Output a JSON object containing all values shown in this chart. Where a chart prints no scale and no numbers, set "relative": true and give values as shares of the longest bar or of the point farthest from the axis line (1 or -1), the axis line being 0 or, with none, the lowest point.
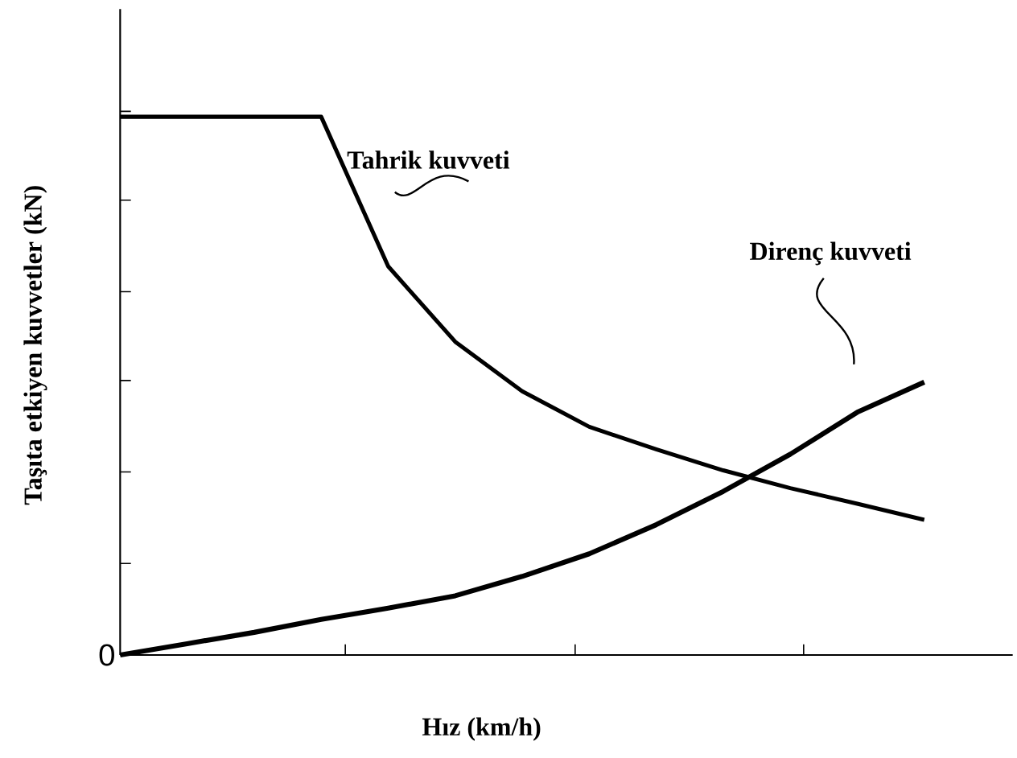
{
  "chart_data": {
    "type": "line",
    "relative": true,
    "xlabel": "Hız (km/h)",
    "ylabel": "Taşıta etkiyen kuvvetler (kN)",
    "categories": [
      null,
      null,
      null,
      null,
      null,
      null,
      null,
      null,
      null,
      null,
      null,
      null,
      null
    ],
    "annotations": [
      "Tahrik kuvveti",
      "Direnç kuvveti",
      "0"
    ],
    "marker": "none",
    "line_style": "solid",
    "series": [
      {
        "color": "#000000",
        "values": [
          1.0,
          1.0,
          1.0,
          1.0,
          0.722,
          0.582,
          0.49,
          0.424,
          0.382,
          0.343,
          0.31,
          0.281,
          0.251
        ]
      },
      {
        "color": "#000000",
        "values": [
          0,
          0.021,
          0.042,
          0.066,
          0.087,
          0.11,
          0.146,
          0.188,
          0.242,
          0.304,
          0.373,
          0.451,
          0.507
        ]
      }
    ]
  }
}
